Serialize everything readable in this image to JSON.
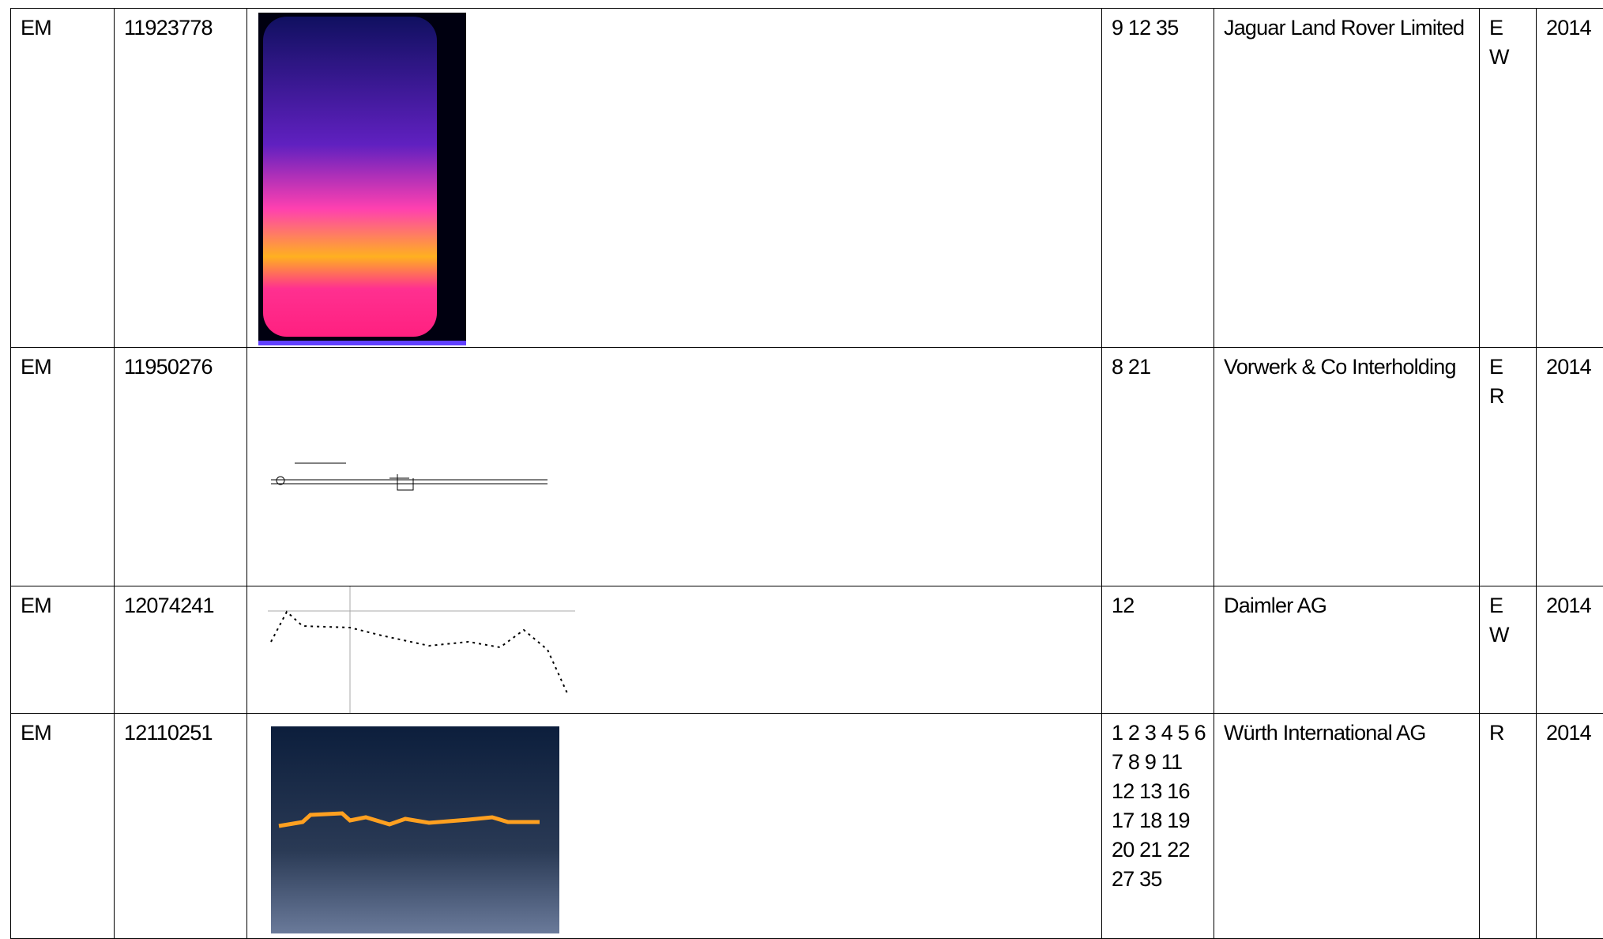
{
  "table": {
    "rows": [
      [
        "EM",
        "11923778",
        "9 12 35",
        "Jaguar Land Rover Limited",
        "E W",
        "2014"
      ],
      [
        "EM",
        "11950276",
        "8 21",
        "Vorwerk & Co Interholding",
        "E R",
        "2014"
      ],
      [
        "EM",
        "12074241",
        "12",
        "Daimler AG",
        "E W",
        "2014"
      ],
      [
        "EM",
        "12110251",
        "1 2 3 4 5 6 7 8 9 11 12 13 16 17 18 19 20 21 22 27 35",
        "Würth International AG",
        "R",
        "2014"
      ]
    ]
  }
}
